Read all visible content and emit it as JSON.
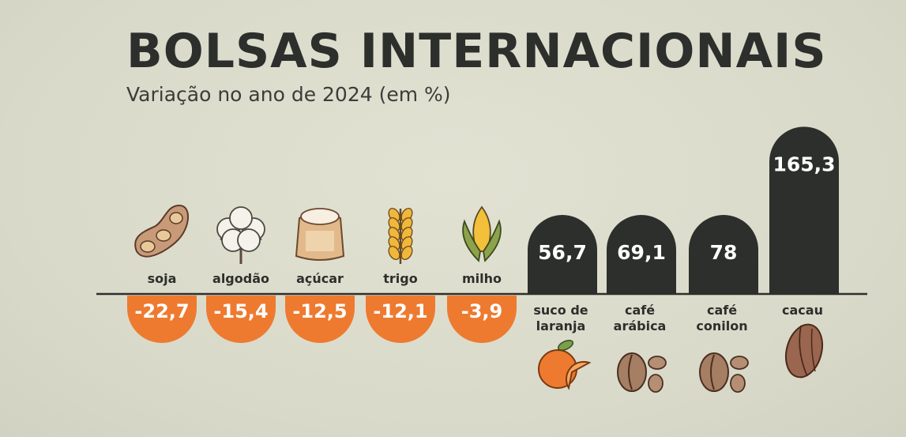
{
  "header": {
    "title": "BOLSAS INTERNACIONAIS",
    "subtitle": "Variação no ano de 2024 (em %)"
  },
  "colors": {
    "positive": "#2c2f2b",
    "negative": "#ee7a30",
    "text": "#2c2f2b",
    "baseline": "#2c2f2b"
  },
  "chart_data": {
    "type": "bar",
    "title": "BOLSAS INTERNACIONAIS",
    "subtitle": "Variação no ano de 2024 (em %)",
    "categories": [
      "soja",
      "algodão",
      "açúcar",
      "trigo",
      "milho",
      "suco de laranja",
      "café arábica",
      "café conilon",
      "cacau"
    ],
    "category_lines": [
      [
        "soja"
      ],
      [
        "algodão"
      ],
      [
        "açúcar"
      ],
      [
        "trigo"
      ],
      [
        "milho"
      ],
      [
        "suco de",
        "laranja"
      ],
      [
        "café",
        "arábica"
      ],
      [
        "café",
        "conilon"
      ],
      [
        "cacau"
      ]
    ],
    "values": [
      -22.7,
      -15.4,
      -12.5,
      -12.1,
      -3.9,
      56.7,
      69.1,
      78,
      165.3
    ],
    "value_labels": [
      "-22,7",
      "-15,4",
      "-12,5",
      "-12,1",
      "-3,9",
      "56,7",
      "69,1",
      "78",
      "165,3"
    ],
    "icons": [
      "soybean-icon",
      "cotton-icon",
      "sugar-sack-icon",
      "wheat-icon",
      "corn-icon",
      "orange-icon",
      "coffee-beans-icon",
      "coffee-beans-icon",
      "cocoa-pod-icon"
    ],
    "xlabel": "",
    "ylabel": "",
    "grid": false,
    "legend": "none"
  }
}
